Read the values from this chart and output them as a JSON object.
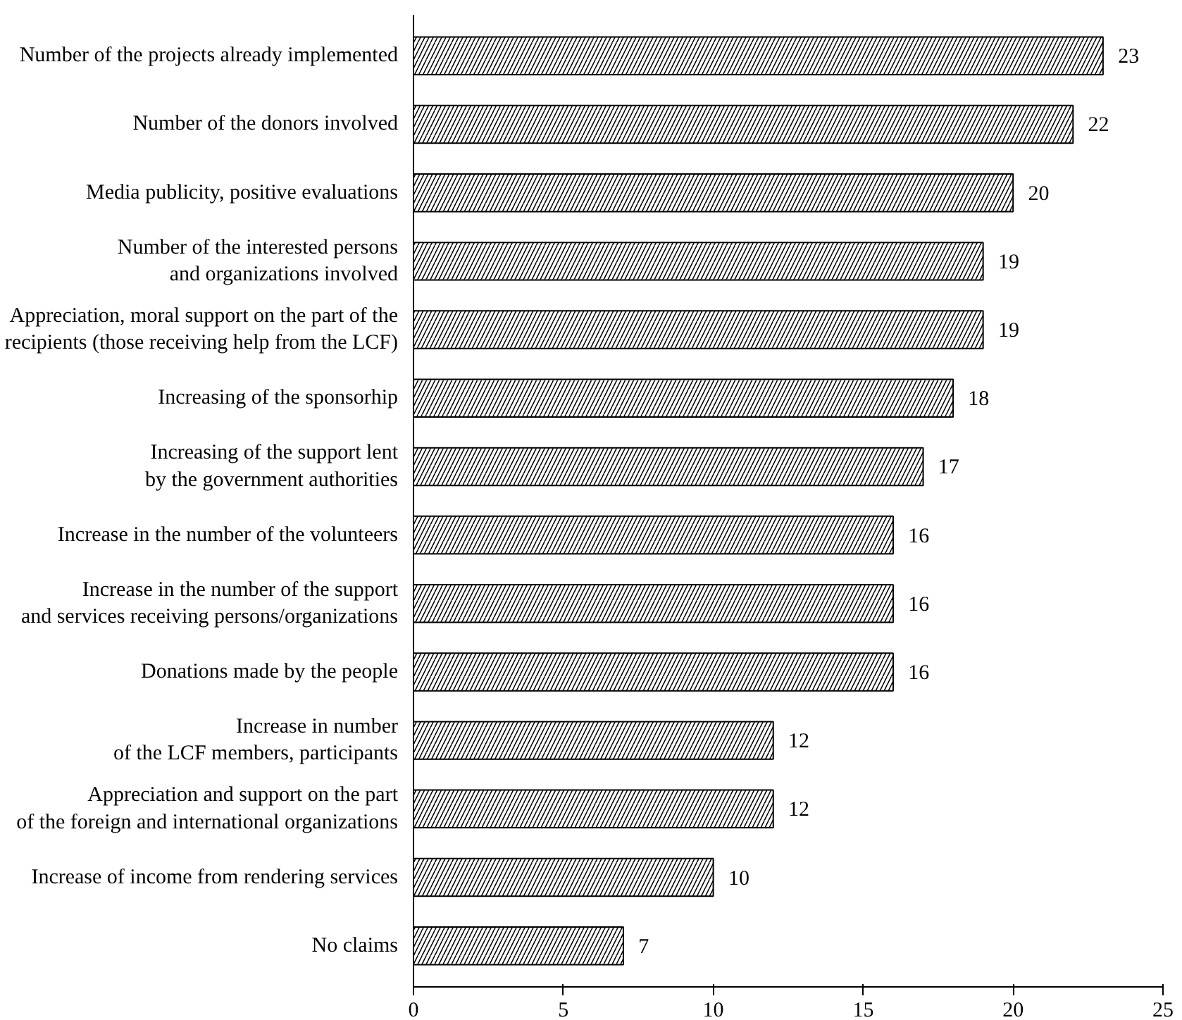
{
  "chart_data": {
    "type": "bar",
    "orientation": "horizontal",
    "categories": [
      "Number of the projects already implemented",
      "Number of the donors involved",
      "Media publicity, positive evaluations",
      "Number of the interested persons\nand organizations involved",
      "Appreciation, moral support on the part of the\nrecipients (those receiving help from the LCF)",
      "Increasing of the sponsorhip",
      "Increasing of the support lent\nby the government authorities",
      "Increase in the number of the volunteers",
      "Increase in the number of the support\nand services receiving persons/organizations",
      "Donations made by the people",
      "Increase in number\nof the LCF members, participants",
      "Appreciation and support on the part\nof the foreign and international organizations",
      "Increase of income from rendering services",
      "No claims"
    ],
    "values": [
      23,
      22,
      20,
      19,
      19,
      18,
      17,
      16,
      16,
      16,
      12,
      12,
      10,
      7
    ],
    "color": "#000000",
    "xlim": [
      0,
      25
    ],
    "xticks": [
      0,
      5,
      10,
      15,
      20,
      25
    ],
    "data_labels": true,
    "grid": false
  }
}
